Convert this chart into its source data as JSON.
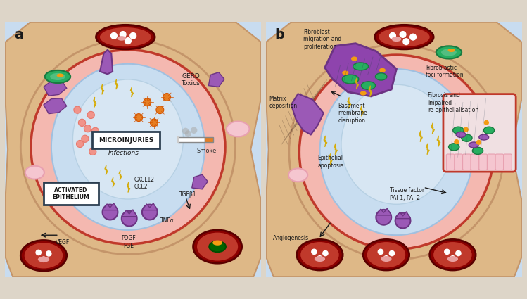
{
  "bg_color": "#ddd5c8",
  "skin_color": "#deb887",
  "skin_edge": "#c4956a",
  "vessel_dark": "#8b0000",
  "vessel_mid": "#c0392b",
  "vessel_light": "#f4b8b0",
  "alveolar_bg": "#c8dcf0",
  "alveolar_inner": "#ddeaf8",
  "pink_oval": "#f5c6d0",
  "pink_oval_edge": "#e8a0b0",
  "purple_cell": "#9b59b6",
  "purple_edge": "#6c3483",
  "green_cell": "#27ae60",
  "green_edge": "#1a7a40",
  "green_light": "#52be80",
  "orange_cell": "#e67e22",
  "orange_spot": "#f39c12",
  "yellow_bolt": "#f1c40f",
  "yellow_bolt_edge": "#d4ac0d",
  "blue_bact": "#5d8aa8",
  "green_bact": "#52be80",
  "pink_dot": "#f1948a",
  "pink_dot_edge": "#e8776b",
  "text_dark": "#1a1a1a",
  "text_mid": "#333333",
  "white": "#ffffff",
  "smoke_gray": "#aaaaaa",
  "border": "#2c3e50",
  "label_a": "a",
  "label_b": "b",
  "text_microinjuries": "MICROINJURIES",
  "text_activated": "ACTIVATED\nEPITHELIUM",
  "text_gerd": "GERD\nToxics",
  "text_smoke": "Smoke",
  "text_infections": "Infections",
  "text_vegf": "VEGF",
  "text_pdgf": "PDGF\nFGE",
  "text_tnf": "TNFα",
  "text_tgf": "TGFβ1",
  "text_cxcl": "CXCL12\nCCL2",
  "text_fibroblast": "Fibroblast\nmigration and\nproliferation",
  "text_matrix": "Matrix\ndeposition",
  "text_basement": "Basement\nmembrane\ndisruption",
  "text_foci": "Fibroblastic\nfoci formation",
  "text_fibrosis": "Fibrosis and\nimpaired\nre-epithelialisation",
  "text_epithelial": "Epithelial\napoptosis",
  "text_tissue": "Tissue factor\nPAI-1, PAI-2",
  "text_angiogenesis": "Angiogenesis"
}
